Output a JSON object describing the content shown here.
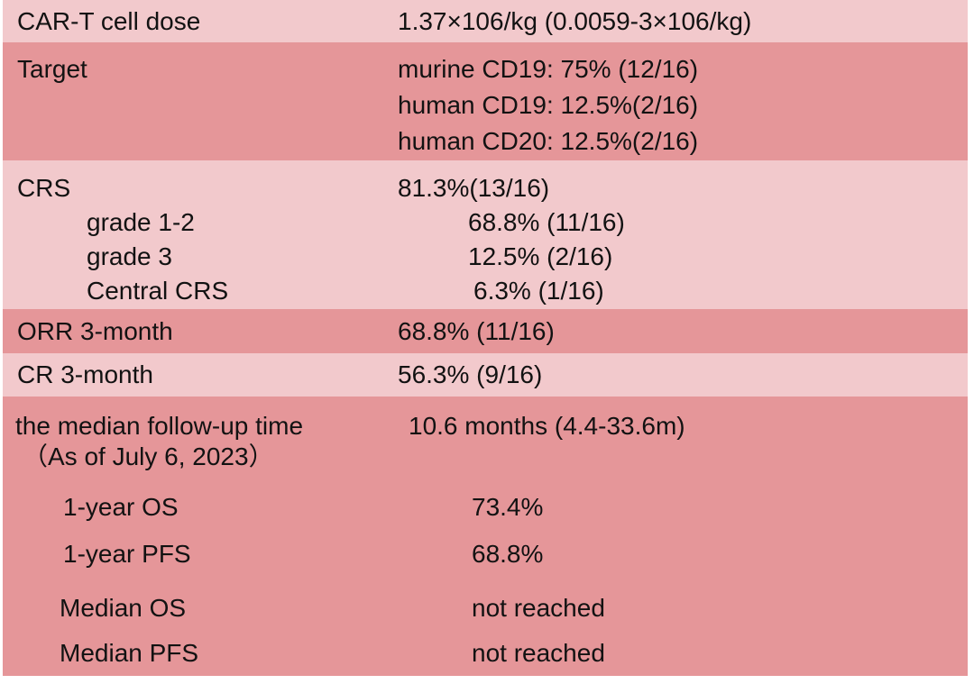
{
  "colors": {
    "row_light": "#f2c9cc",
    "row_dark": "#e59699",
    "text": "#121212",
    "background": "#ffffff"
  },
  "table": {
    "rows": [
      {
        "label": "CAR-T cell dose",
        "value": "1.37×106/kg (0.0059-3×106/kg)"
      },
      {
        "label": "Target",
        "values": [
          "murine CD19: 75% (12/16)",
          "human CD19: 12.5%(2/16)",
          "human CD20: 12.5%(2/16)"
        ]
      },
      {
        "label": "CRS",
        "value": "81.3%(13/16)",
        "sub_rows": [
          {
            "label": "grade 1-2",
            "value": "68.8% (11/16)"
          },
          {
            "label": "grade 3",
            "value": "12.5% (2/16)"
          },
          {
            "label": "Central CRS",
            "value": "6.3% (1/16)"
          }
        ]
      },
      {
        "label": "ORR 3-month",
        "value": "68.8% (11/16)"
      },
      {
        "label": "CR 3-month",
        "value": "56.3% (9/16)"
      },
      {
        "label": "the median follow-up time",
        "label_line2": "（As of July 6, 2023）",
        "value": "10.6 months (4.4-33.6m)",
        "sub_rows": [
          {
            "label": "1-year OS",
            "value": "73.4%"
          },
          {
            "label": "1-year PFS",
            "value": "68.8%"
          },
          {
            "label": "Median OS",
            "value": "not reached"
          },
          {
            "label": "Median PFS",
            "value": "not reached"
          }
        ]
      }
    ]
  }
}
